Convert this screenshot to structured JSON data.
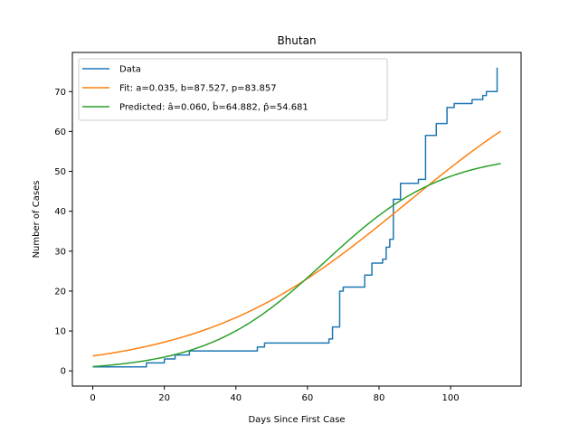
{
  "chart_data": {
    "type": "line",
    "title": "Bhutan",
    "xlabel": "Days Since First Case",
    "ylabel": "Number of Cases",
    "xlim": [
      -5.7,
      119.7
    ],
    "ylim": [
      -3.8,
      79.8
    ],
    "xticks": [
      0,
      20,
      40,
      60,
      80,
      100
    ],
    "yticks": [
      0,
      10,
      20,
      30,
      40,
      50,
      60,
      70
    ],
    "grid": false,
    "legend_position": "top-left",
    "series": [
      {
        "name": "Data",
        "color": "#1f77b4",
        "style": "step",
        "x": [
          0,
          14,
          15,
          19,
          20,
          22,
          23,
          26,
          27,
          45,
          46,
          47,
          48,
          49,
          64,
          65,
          66,
          67,
          68,
          69,
          70,
          71,
          75,
          76,
          77,
          78,
          79,
          80,
          81,
          82,
          83,
          84,
          85,
          86,
          87,
          90,
          91,
          92,
          93,
          94,
          96,
          97,
          99,
          100,
          101,
          103,
          104,
          105,
          106,
          107,
          108,
          109,
          110,
          111,
          112,
          113
        ],
        "y": [
          1,
          1,
          2,
          2,
          3,
          3,
          4,
          4,
          5,
          5,
          6,
          6,
          7,
          7,
          7,
          7,
          8,
          11,
          11,
          20,
          21,
          21,
          21,
          24,
          24,
          27,
          27,
          27,
          28,
          31,
          33,
          43,
          43,
          47,
          47,
          47,
          48,
          48,
          59,
          59,
          62,
          62,
          66,
          66,
          67,
          67,
          67,
          67,
          68,
          68,
          68,
          69,
          70,
          70,
          70,
          76
        ]
      },
      {
        "name": "Fit: a=0.035, b=87.527, p=83.857",
        "color": "#ff7f0e",
        "style": "logistic",
        "a": 0.035,
        "b": 87.527,
        "p": 83.857,
        "x_range": [
          0,
          114
        ]
      },
      {
        "name": "Predicted: â=0.060, b̂=64.882, p̂=54.681",
        "color": "#2ca02c",
        "style": "logistic",
        "a": 0.06,
        "b": 64.882,
        "p": 54.681,
        "x_range": [
          0,
          114
        ]
      }
    ]
  }
}
